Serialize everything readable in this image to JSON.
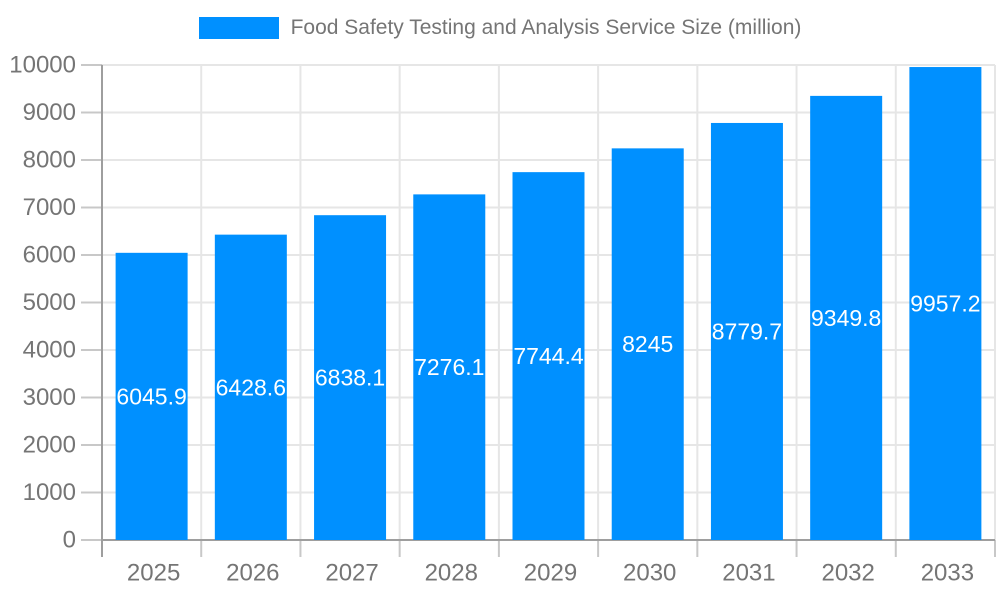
{
  "chart_data": {
    "type": "bar",
    "title": "Food Safety Testing and Analysis Service Size (million)",
    "categories": [
      "2025",
      "2026",
      "2027",
      "2028",
      "2029",
      "2030",
      "2031",
      "2032",
      "2033"
    ],
    "series": [
      {
        "name": "Food Safety Testing and Analysis Service Size (million)",
        "values": [
          6045.9,
          6428.6,
          6838.1,
          7276.1,
          7744.4,
          8245,
          8779.7,
          9349.8,
          9957.2
        ]
      }
    ],
    "bar_labels": [
      "6045.9",
      "6428.6",
      "6838.1",
      "7276.1",
      "7744.4",
      "8245",
      "8779.7",
      "9349.8",
      "9957.2"
    ],
    "xlabel": "",
    "ylabel": "",
    "ylim": [
      0,
      10000
    ],
    "ytick_step": 1000,
    "ytick_labels": [
      "0",
      "1000",
      "2000",
      "3000",
      "4000",
      "5000",
      "6000",
      "7000",
      "8000",
      "9000",
      "10000"
    ],
    "grid": true,
    "legend_position": "top-center",
    "colors": {
      "bar": "#0090ff",
      "bar_label_text": "#ffffff",
      "axis_text": "#757575",
      "title_text": "#757575",
      "gridline": "#e6e6e6",
      "tick": "#c8c8c8",
      "axis_line": "#9e9e9e",
      "background": "#ffffff"
    }
  }
}
